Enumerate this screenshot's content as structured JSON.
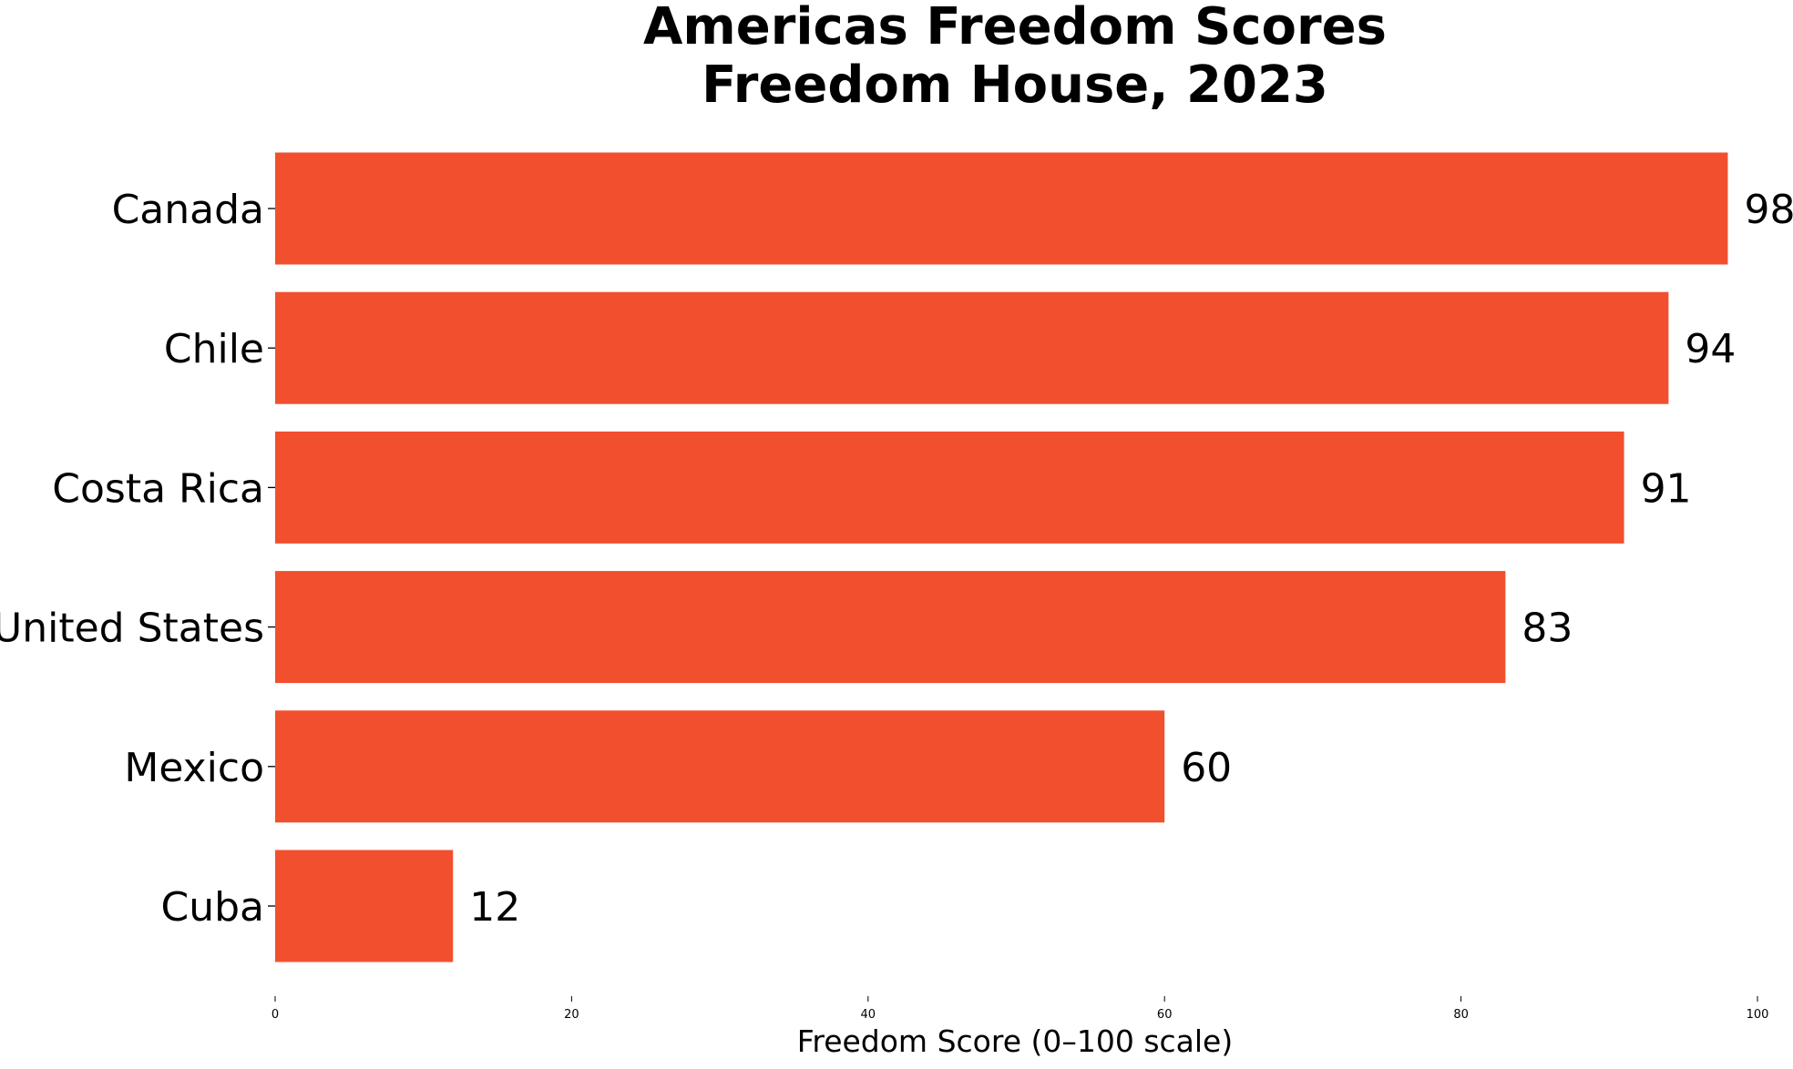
{
  "chart_data": {
    "type": "bar",
    "orientation": "horizontal",
    "title_lines": [
      "Americas Freedom Scores",
      "Freedom House, 2023"
    ],
    "categories": [
      "Canada",
      "Chile",
      "Costa Rica",
      "United States",
      "Mexico",
      "Cuba"
    ],
    "values": [
      98,
      94,
      91,
      83,
      60,
      12
    ],
    "xlabel": "Freedom Score (0–100 scale)",
    "ylabel": "",
    "xlim": [
      0,
      100
    ],
    "xticks": [
      0,
      20,
      40,
      60,
      80,
      100
    ],
    "xtick_labels": [
      "0",
      "20",
      "40",
      "60",
      "80",
      "100"
    ],
    "grid": false,
    "legend": "none",
    "bar_color": "#f24f2f",
    "data_labels": [
      "98",
      "94",
      "91",
      "83",
      "60",
      "12"
    ]
  }
}
